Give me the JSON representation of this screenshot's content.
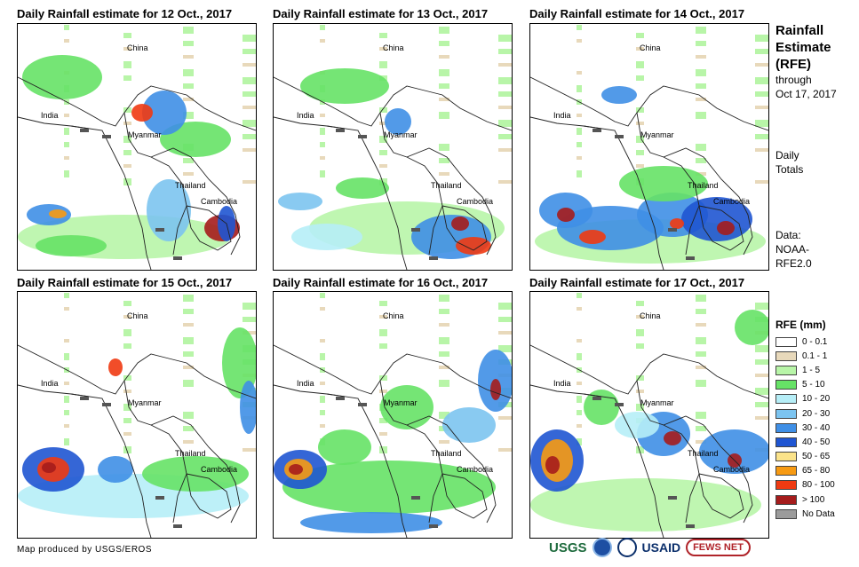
{
  "panels": [
    {
      "title": "Daily Rainfall estimate for 12 Oct., 2017",
      "labels": {
        "china": "China",
        "india": "India",
        "myanmar": "Myanmar",
        "thailand": "Thailand",
        "cambodia": "Cambodia"
      }
    },
    {
      "title": "Daily Rainfall estimate for 13 Oct., 2017",
      "labels": {
        "china": "China",
        "india": "India",
        "myanmar": "Myanmar",
        "thailand": "Thailand",
        "cambodia": "Cambodia"
      }
    },
    {
      "title": "Daily Rainfall estimate for 14 Oct., 2017",
      "labels": {
        "china": "China",
        "india": "India",
        "myanmar": "Myanmar",
        "thailand": "Thailand",
        "cambodia": "Cambodia"
      }
    },
    {
      "title": "Daily Rainfall estimate for 15 Oct., 2017",
      "labels": {
        "china": "China",
        "india": "India",
        "myanmar": "Myanmar",
        "thailand": "Thailand",
        "cambodia": "Cambodia"
      }
    },
    {
      "title": "Daily Rainfall estimate for 16 Oct., 2017",
      "labels": {
        "china": "China",
        "india": "India",
        "myanmar": "Myanmar",
        "thailand": "Thailand",
        "cambodia": "Cambodia"
      }
    },
    {
      "title": "Daily Rainfall estimate for 17 Oct., 2017",
      "labels": {
        "china": "China",
        "india": "India",
        "myanmar": "Myanmar",
        "thailand": "Thailand",
        "cambodia": "Cambodia"
      }
    }
  ],
  "side": {
    "title_lines": [
      "Rainfall",
      "Estimate",
      "(RFE)"
    ],
    "through": "through",
    "date": "Oct 17, 2017",
    "daily_lines": [
      "Daily",
      "Totals"
    ],
    "data_lines": [
      "Data:",
      "NOAA-",
      "RFE2.0"
    ]
  },
  "legend": {
    "title": "RFE (mm)",
    "items": [
      {
        "label": "0 - 0.1",
        "color": "#ffffff"
      },
      {
        "label": "0.1 - 1",
        "color": "#e8d9bb"
      },
      {
        "label": "1 - 5",
        "color": "#b8f5a8"
      },
      {
        "label": "5 - 10",
        "color": "#66e266"
      },
      {
        "label": "10 - 20",
        "color": "#b6eef7"
      },
      {
        "label": "20 - 30",
        "color": "#7cc4f0"
      },
      {
        "label": "30 - 40",
        "color": "#3f8fe6"
      },
      {
        "label": "40 - 50",
        "color": "#1f55d2"
      },
      {
        "label": "50 - 65",
        "color": "#fbe38a"
      },
      {
        "label": "65 - 80",
        "color": "#f79a12"
      },
      {
        "label": "80 - 100",
        "color": "#ef3a12"
      },
      {
        "label": "> 100",
        "color": "#a51c1c"
      },
      {
        "label": "No Data",
        "color": "#9b9b9b"
      }
    ]
  },
  "footer": "Map produced by USGS/EROS",
  "logos": {
    "usgs": "USGS",
    "usaid": "USAID",
    "fews": "FEWS NET"
  }
}
